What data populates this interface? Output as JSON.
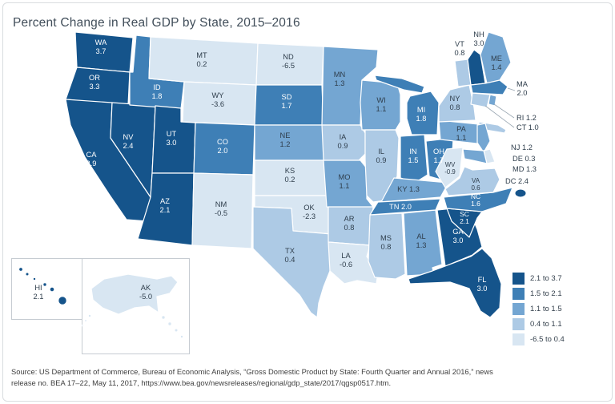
{
  "title": "Percent Change in Real GDP by State, 2015–2016",
  "source": {
    "line1": "Source: US Department of Commerce, Bureau of Economic Analysis, “Gross Domestic Product by State: Fourth Quarter and Annual 2016,” news",
    "line2": "release no. BEA 17–22, May 11, 2017, https://www.bea.gov/newsreleases/regional/gdp_state/2017/qgsp0517.htm."
  },
  "chart_data": {
    "type": "heatmap",
    "subtype": "us-state-choropleth",
    "title": "Percent Change in Real GDP by State, 2015–2016",
    "legend_position": "bottom-right",
    "bins": [
      {
        "label": "2.1 to 3.7",
        "min": 2.1,
        "max": 3.7,
        "color": "#15548b"
      },
      {
        "label": "1.5 to 2.1",
        "min": 1.5,
        "max": 2.1,
        "color": "#3e7fb6"
      },
      {
        "label": "1.1 to 1.5",
        "min": 1.1,
        "max": 1.5,
        "color": "#74a6d2"
      },
      {
        "label": "0.4 to 1.1",
        "min": 0.4,
        "max": 1.1,
        "color": "#adcae5"
      },
      {
        "label": "-6.5 to 0.4",
        "min": -6.5,
        "max": 0.4,
        "color": "#d8e6f2"
      }
    ],
    "states": [
      {
        "abbr": "WA",
        "value": 3.7,
        "display": "3.7"
      },
      {
        "abbr": "OR",
        "value": 3.3,
        "display": "3.3"
      },
      {
        "abbr": "CA",
        "value": 2.9,
        "display": "2.9"
      },
      {
        "abbr": "NV",
        "value": 2.4,
        "display": "2.4"
      },
      {
        "abbr": "ID",
        "value": 1.8,
        "display": "1.8"
      },
      {
        "abbr": "MT",
        "value": 0.2,
        "display": "0.2"
      },
      {
        "abbr": "WY",
        "value": -3.6,
        "display": "-3.6"
      },
      {
        "abbr": "UT",
        "value": 3.0,
        "display": "3.0"
      },
      {
        "abbr": "AZ",
        "value": 2.1,
        "display": "2.1"
      },
      {
        "abbr": "CO",
        "value": 2.0,
        "display": "2.0"
      },
      {
        "abbr": "NM",
        "value": -0.5,
        "display": "-0.5"
      },
      {
        "abbr": "ND",
        "value": -6.5,
        "display": "-6.5"
      },
      {
        "abbr": "SD",
        "value": 1.7,
        "display": "1.7"
      },
      {
        "abbr": "NE",
        "value": 1.2,
        "display": "1.2"
      },
      {
        "abbr": "KS",
        "value": 0.2,
        "display": "0.2"
      },
      {
        "abbr": "OK",
        "value": -2.3,
        "display": "-2.3"
      },
      {
        "abbr": "TX",
        "value": 0.4,
        "display": "0.4"
      },
      {
        "abbr": "MN",
        "value": 1.3,
        "display": "1.3"
      },
      {
        "abbr": "IA",
        "value": 0.9,
        "display": "0.9"
      },
      {
        "abbr": "MO",
        "value": 1.1,
        "display": "1.1"
      },
      {
        "abbr": "AR",
        "value": 0.8,
        "display": "0.8"
      },
      {
        "abbr": "LA",
        "value": -0.6,
        "display": "-0.6"
      },
      {
        "abbr": "WI",
        "value": 1.1,
        "display": "1.1"
      },
      {
        "abbr": "IL",
        "value": 0.9,
        "display": "0.9"
      },
      {
        "abbr": "MS",
        "value": 0.8,
        "display": "0.8"
      },
      {
        "abbr": "AL",
        "value": 1.3,
        "display": "1.3"
      },
      {
        "abbr": "MI",
        "value": 1.8,
        "display": "1.8"
      },
      {
        "abbr": "IN",
        "value": 1.5,
        "display": "1.5"
      },
      {
        "abbr": "OH",
        "value": 1.7,
        "display": "1.7"
      },
      {
        "abbr": "KY",
        "value": 1.3,
        "display": "1.3"
      },
      {
        "abbr": "TN",
        "value": 2.0,
        "display": "2.0"
      },
      {
        "abbr": "GA",
        "value": 3.0,
        "display": "3.0"
      },
      {
        "abbr": "FL",
        "value": 3.0,
        "display": "3.0"
      },
      {
        "abbr": "SC",
        "value": 2.1,
        "display": "2.1"
      },
      {
        "abbr": "NC",
        "value": 1.6,
        "display": "1.6"
      },
      {
        "abbr": "VA",
        "value": 0.6,
        "display": "0.6"
      },
      {
        "abbr": "WV",
        "value": -0.9,
        "display": "-0.9"
      },
      {
        "abbr": "PA",
        "value": 1.1,
        "display": "1.1"
      },
      {
        "abbr": "NY",
        "value": 0.8,
        "display": "0.8"
      },
      {
        "abbr": "NJ",
        "value": 1.2,
        "display": "1.2"
      },
      {
        "abbr": "DE",
        "value": 0.3,
        "display": "0.3"
      },
      {
        "abbr": "MD",
        "value": 1.3,
        "display": "1.3"
      },
      {
        "abbr": "DC",
        "value": 2.4,
        "display": "2.4"
      },
      {
        "abbr": "VT",
        "value": 0.8,
        "display": "0.8"
      },
      {
        "abbr": "NH",
        "value": 3.0,
        "display": "3.0"
      },
      {
        "abbr": "ME",
        "value": 1.4,
        "display": "1.4"
      },
      {
        "abbr": "MA",
        "value": 2.0,
        "display": "2.0"
      },
      {
        "abbr": "RI",
        "value": 1.2,
        "display": "1.2"
      },
      {
        "abbr": "CT",
        "value": 1.0,
        "display": "1.0"
      },
      {
        "abbr": "HI",
        "value": 2.1,
        "display": "2.1"
      },
      {
        "abbr": "AK",
        "value": -5.0,
        "display": "-5.0"
      }
    ]
  }
}
